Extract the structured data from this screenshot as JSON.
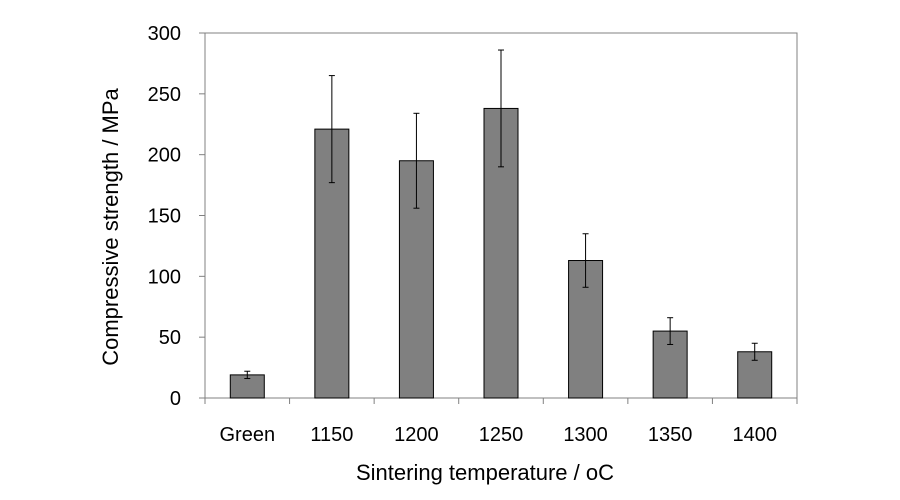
{
  "chart_data": {
    "type": "bar",
    "title": "",
    "xlabel": "Sintering temperature / ",
    "xlabel_unit": "oC",
    "ylabel": "Compressive strength / MPa",
    "ylim": [
      0,
      300
    ],
    "yticks": [
      "0",
      "50",
      "100",
      "150",
      "200",
      "250",
      "300"
    ],
    "categories": [
      "Green",
      "1150",
      "1200",
      "1250",
      "1300",
      "1350",
      "1400"
    ],
    "series": [
      {
        "values": [
          19,
          221,
          195,
          238,
          113,
          55,
          38
        ],
        "error": [
          3,
          44,
          39,
          48,
          22,
          11,
          7
        ],
        "color": "#808080"
      }
    ],
    "grid": false,
    "legend": "none"
  }
}
